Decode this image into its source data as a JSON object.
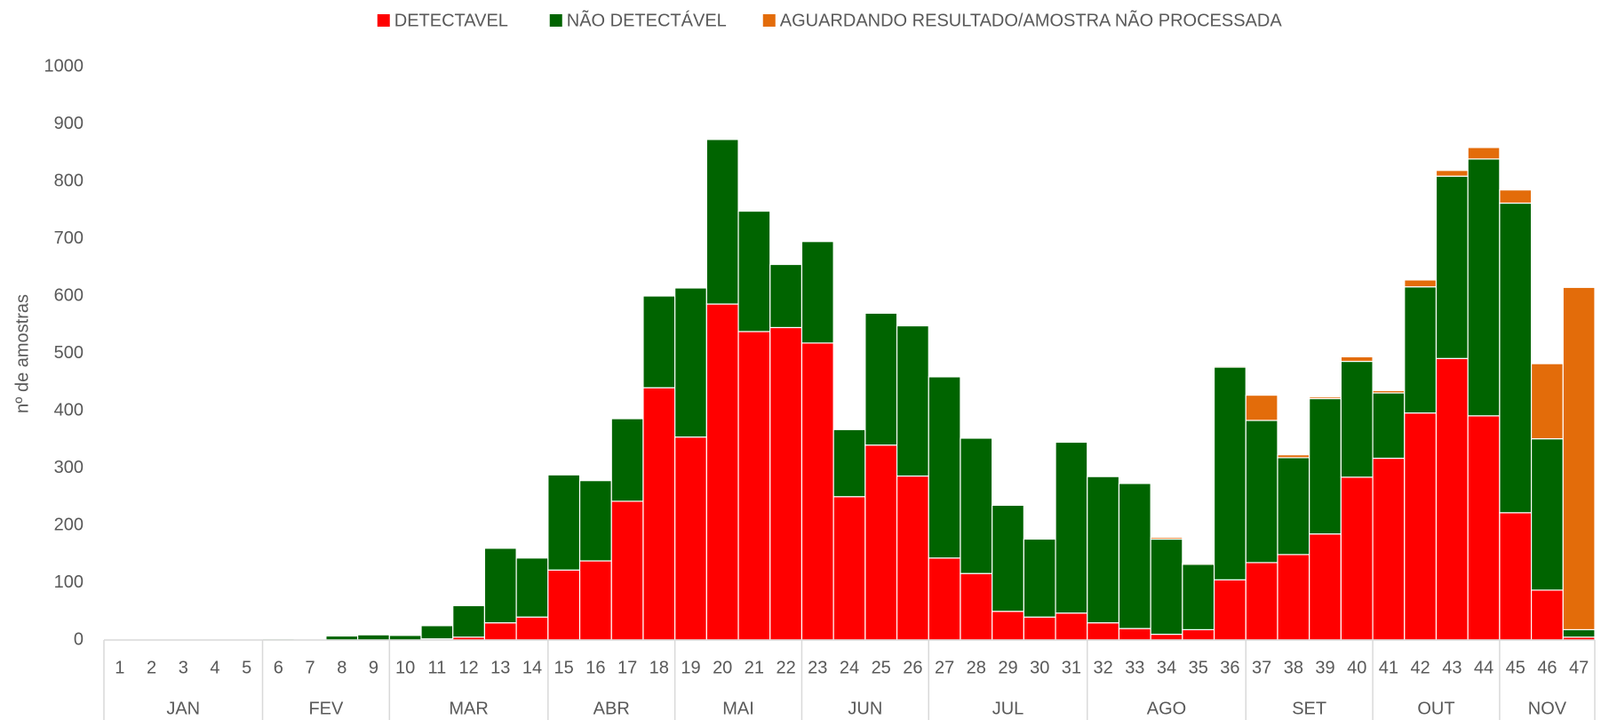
{
  "chart_data": {
    "type": "stacked_bar",
    "y_label": "nº de amostras",
    "categories": [
      "1",
      "2",
      "3",
      "4",
      "5",
      "6",
      "7",
      "8",
      "9",
      "10",
      "11",
      "12",
      "13",
      "14",
      "15",
      "16",
      "17",
      "18",
      "19",
      "20",
      "21",
      "22",
      "23",
      "24",
      "25",
      "26",
      "27",
      "28",
      "29",
      "30",
      "31",
      "32",
      "33",
      "34",
      "35",
      "36",
      "37",
      "38",
      "39",
      "40",
      "41",
      "42",
      "43",
      "44",
      "45",
      "46",
      "47"
    ],
    "category_groups": [
      {
        "label": "JAN",
        "span": 5
      },
      {
        "label": "FEV",
        "span": 4
      },
      {
        "label": "MAR",
        "span": 5
      },
      {
        "label": "ABR",
        "span": 4
      },
      {
        "label": "MAI",
        "span": 4
      },
      {
        "label": "JUN",
        "span": 4
      },
      {
        "label": "JUL",
        "span": 5
      },
      {
        "label": "AGO",
        "span": 5
      },
      {
        "label": "SET",
        "span": 4
      },
      {
        "label": "OUT",
        "span": 4
      },
      {
        "label": "NOV",
        "span": 3
      }
    ],
    "series": [
      {
        "name": "DETECTAVEL",
        "color": "#ff0000",
        "values": [
          0,
          0,
          0,
          0,
          0,
          0,
          0,
          0,
          0,
          0,
          2,
          5,
          30,
          40,
          122,
          138,
          242,
          440,
          354,
          586,
          538,
          545,
          518,
          250,
          340,
          286,
          143,
          116,
          50,
          40,
          47,
          30,
          20,
          10,
          18,
          105,
          135,
          149,
          185,
          284,
          317,
          396,
          491,
          391,
          222,
          87,
          5
        ]
      },
      {
        "name": "NÃO DETECTÁVEL",
        "color": "#006400",
        "values": [
          0,
          0,
          0,
          0,
          0,
          2,
          1,
          7,
          9,
          8,
          23,
          55,
          130,
          103,
          166,
          140,
          144,
          160,
          260,
          287,
          210,
          110,
          177,
          117,
          230,
          262,
          316,
          236,
          185,
          136,
          298,
          255,
          253,
          166,
          114,
          371,
          248,
          169,
          236,
          202,
          114,
          220,
          318,
          448,
          540,
          264,
          13
        ]
      },
      {
        "name": "AGUARDANDO RESULTADO/AMOSTRA NÃO PROCESSADA",
        "color": "#e36c0a",
        "values": [
          0,
          0,
          0,
          0,
          0,
          0,
          0,
          0,
          0,
          0,
          0,
          0,
          0,
          0,
          0,
          0,
          0,
          0,
          0,
          0,
          0,
          0,
          0,
          0,
          0,
          0,
          0,
          0,
          0,
          0,
          0,
          0,
          0,
          3,
          2,
          2,
          44,
          5,
          3,
          8,
          4,
          12,
          10,
          20,
          23,
          131,
          597
        ]
      }
    ],
    "ylim": [
      0,
      1000
    ],
    "yticks": [
      0,
      100,
      200,
      300,
      400,
      500,
      600,
      700,
      800,
      900,
      1000
    ]
  }
}
